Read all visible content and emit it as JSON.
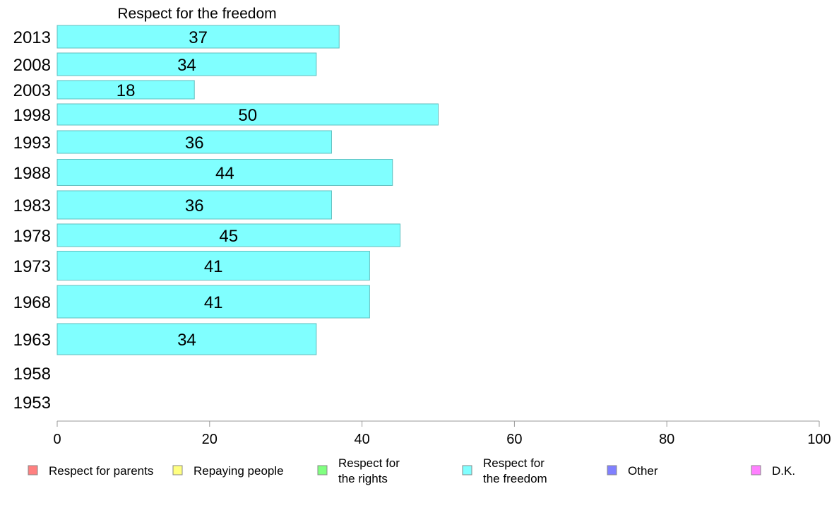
{
  "chart_data": {
    "type": "bar",
    "orientation": "horizontal",
    "title": "Respect for the freedom",
    "categories": [
      "2013",
      "2008",
      "2003",
      "1998",
      "1993",
      "1988",
      "1983",
      "1978",
      "1973",
      "1968",
      "1963",
      "1958",
      "1953"
    ],
    "values": [
      37,
      34,
      18,
      50,
      36,
      44,
      36,
      45,
      41,
      41,
      34,
      null,
      null
    ],
    "bar_color": "#80ffff",
    "bar_edge_color": "#5fbfbf",
    "xlim": [
      0,
      100
    ],
    "xticks": [
      "0",
      "20",
      "40",
      "60",
      "80",
      "100"
    ],
    "grid": false,
    "legend_position": "bottom",
    "legend": [
      {
        "lines": [
          "Respect for parents"
        ],
        "color": "#ff8080"
      },
      {
        "lines": [
          "Repaying people"
        ],
        "color": "#ffff80"
      },
      {
        "lines": [
          "Respect for",
          "the rights"
        ],
        "color": "#80ff80"
      },
      {
        "lines": [
          "Respect for",
          "the freedom"
        ],
        "color": "#80ffff"
      },
      {
        "lines": [
          "Other"
        ],
        "color": "#8080ff"
      },
      {
        "lines": [
          "D.K."
        ],
        "color": "#ff80ff"
      }
    ]
  }
}
